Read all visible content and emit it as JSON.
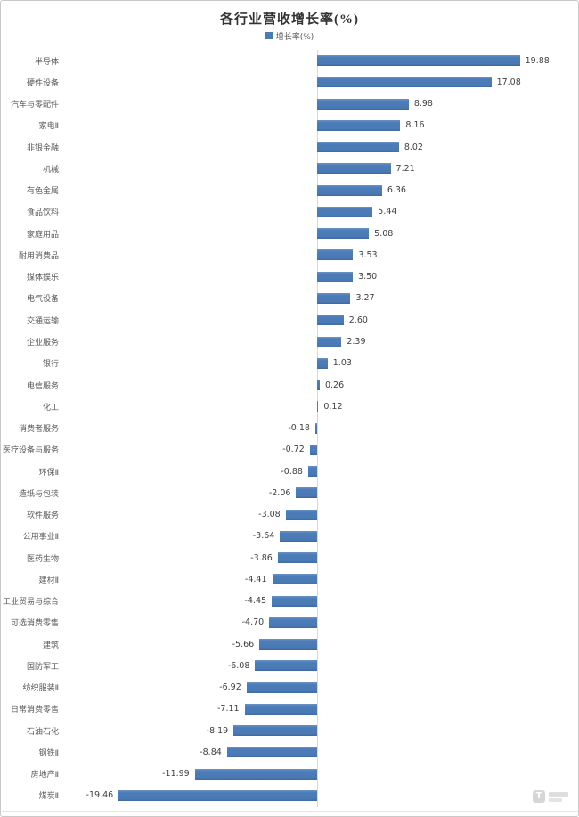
{
  "title": "各行业营收增长率(%)",
  "legend": {
    "label": "增长率(%)",
    "swatch_color": "#4a7bb7"
  },
  "icons": {
    "legend_swatch": "■",
    "watermark_logo": "T"
  },
  "colors": {
    "bar": "#4a7bb7",
    "category_text": "#595959",
    "value_text": "#3f3f3f",
    "axis_line": "#d9d9d9",
    "frame_border": "#c9c9c9",
    "title_text": "#333333"
  },
  "chart_data": {
    "type": "bar",
    "orientation": "horizontal",
    "title": "各行业营收增长率(%)",
    "series_name": "增长率(%)",
    "legend_position": "top-center",
    "bar_color": "#4a7bb7",
    "value_labels": "at bar ends, two decimals",
    "axis": {
      "zero_line": true,
      "tick_labels_visible": false,
      "gridlines": false
    },
    "xlim_implied": [
      -22,
      22
    ],
    "categories": [
      "半导体",
      "硬件设备",
      "汽车与零配件",
      "家电Ⅱ",
      "非银金融",
      "机械",
      "有色金属",
      "食品饮料",
      "家庭用品",
      "耐用消费品",
      "媒体娱乐",
      "电气设备",
      "交通运输",
      "企业服务",
      "银行",
      "电信服务",
      "化工",
      "消费者服务",
      "医疗设备与服务",
      "环保Ⅱ",
      "造纸与包装",
      "软件服务",
      "公用事业Ⅱ",
      "医药生物",
      "建材Ⅱ",
      "工业贸易与综合",
      "可选消费零售",
      "建筑",
      "国防军工",
      "纺织服装Ⅱ",
      "日常消费零售",
      "石油石化",
      "钢铁Ⅱ",
      "房地产Ⅱ",
      "煤炭Ⅱ"
    ],
    "values": [
      19.88,
      17.08,
      8.98,
      8.16,
      8.02,
      7.21,
      6.36,
      5.44,
      5.08,
      3.53,
      3.5,
      3.27,
      2.6,
      2.39,
      1.03,
      0.26,
      0.12,
      -0.18,
      -0.72,
      -0.88,
      -2.06,
      -3.08,
      -3.64,
      -3.86,
      -4.41,
      -4.45,
      -4.7,
      -5.66,
      -6.08,
      -6.92,
      -7.11,
      -8.19,
      -8.84,
      -11.99,
      -19.46
    ]
  }
}
